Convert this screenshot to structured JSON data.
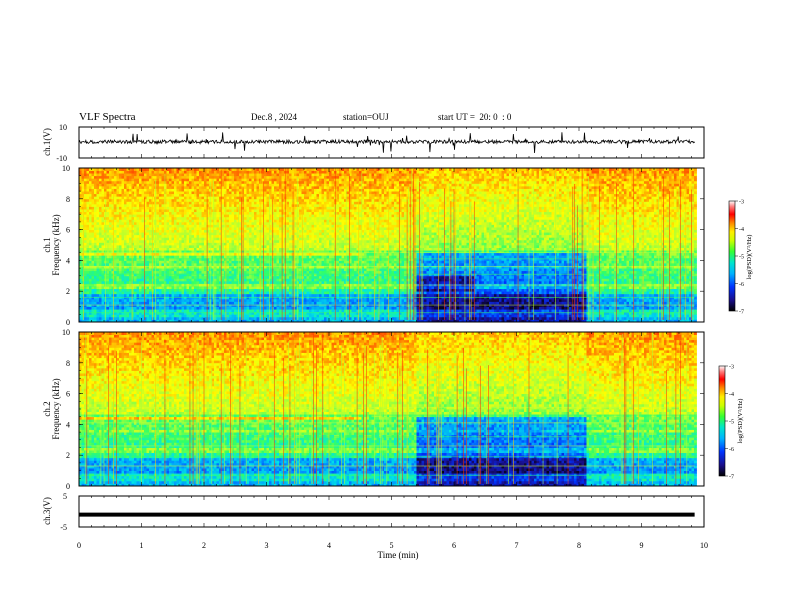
{
  "header": {
    "title": "VLF Spectra",
    "date": "Dec.8 , 2024",
    "station": "station=OUJ",
    "start_ut": "start UT =  20: 0  : 0"
  },
  "colors": {
    "colormap": [
      "#000000",
      "#1a0f8c",
      "#0033ff",
      "#0099ff",
      "#00e5e5",
      "#33ff66",
      "#b2ff33",
      "#ffff00",
      "#ff9900",
      "#ff2a00",
      "#ff0000",
      "#ff8080",
      "#ffffff"
    ],
    "waveform": "#000000"
  },
  "chart_data": [
    {
      "type": "line",
      "panel": "ch1-waveform",
      "ylabel": "ch.1(V)",
      "ylim": [
        -10,
        10
      ],
      "y_ticks": [
        "10",
        "-10"
      ],
      "xlim": [
        0,
        10
      ],
      "description_series": "bipolar noise signal, mostly within ±2 V with spikes to about ±8 V"
    },
    {
      "type": "heatmap",
      "panel": "ch1-spectrogram",
      "ylabel": "ch.1\nFrequency (kHz)",
      "ylabel_lines": [
        "ch.1",
        "Frequency (kHz)"
      ],
      "ylim": [
        0,
        10
      ],
      "y_ticks": [
        "0",
        "2",
        "4",
        "6",
        "8",
        "10"
      ],
      "xlim": [
        0,
        10
      ],
      "colorbar": {
        "label": "log(PSD)(V²/Hz)",
        "ticks": [
          "-3",
          "-4",
          "-5",
          "-6",
          "-7"
        ],
        "range": [
          -7,
          -3
        ]
      },
      "quiet_interval_min": [
        5.4,
        8.1
      ],
      "quiet_band_khz": [
        0,
        4.5
      ]
    },
    {
      "type": "heatmap",
      "panel": "ch2-spectrogram",
      "ylabel": "ch.2\nFrequency (kHz)",
      "ylabel_lines": [
        "ch.2",
        "Frequency (kHz)"
      ],
      "ylim": [
        0,
        10
      ],
      "y_ticks": [
        "0",
        "2",
        "4",
        "6",
        "8",
        "10"
      ],
      "xlim": [
        0,
        10
      ],
      "colorbar": {
        "label": "log(PSD)(V²/Hz)",
        "ticks": [
          "-3",
          "-4",
          "-5",
          "-6",
          "-7"
        ],
        "range": [
          -7,
          -3
        ]
      },
      "quiet_interval_min": [
        5.4,
        8.1
      ],
      "quiet_band_khz": [
        0,
        4.5
      ]
    },
    {
      "type": "line",
      "panel": "ch3-waveform",
      "ylabel": "ch.3(V)",
      "ylim": [
        -5,
        5
      ],
      "y_ticks": [
        "5",
        "-5"
      ],
      "xlim": [
        0,
        10
      ],
      "series": [
        {
          "x": [
            0,
            9.85
          ],
          "y": [
            -1,
            -1
          ]
        }
      ]
    }
  ],
  "xaxis": {
    "label": "Time (min)",
    "ticks": [
      "0",
      "1",
      "2",
      "3",
      "4",
      "5",
      "6",
      "7",
      "8",
      "9",
      "10"
    ],
    "range": [
      0,
      10
    ],
    "data_end": 9.85
  }
}
